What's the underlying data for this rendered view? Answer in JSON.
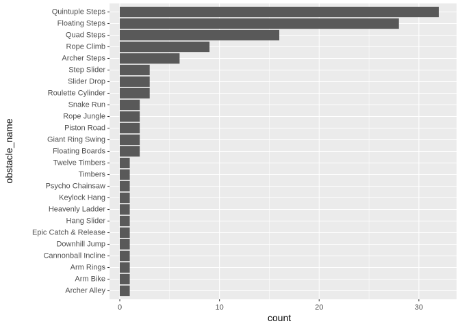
{
  "chart_data": {
    "type": "bar",
    "orientation": "horizontal",
    "xlabel": "count",
    "ylabel": "obstacle_name",
    "xlim": [
      0,
      33.6
    ],
    "x_ticks": [
      0,
      10,
      20,
      30
    ],
    "x_tick_labels": [
      "0",
      "10",
      "20",
      "30"
    ],
    "grid": true,
    "categories": [
      "Quintuple Steps",
      "Floating Steps",
      "Quad Steps",
      "Rope Climb",
      "Archer Steps",
      "Step Slider",
      "Slider Drop",
      "Roulette Cylinder",
      "Snake Run",
      "Rope Jungle",
      "Piston Road",
      "Giant Ring Swing",
      "Floating Boards",
      "Twelve Timbers",
      "Timbers",
      "Psycho Chainsaw",
      "Keylock Hang",
      "Heavenly Ladder",
      "Hang Slider",
      "Epic Catch & Release",
      "Downhill Jump",
      "Cannonball Incline",
      "Arm Rings",
      "Arm Bike",
      "Archer Alley"
    ],
    "values": [
      32,
      28,
      16,
      9,
      6,
      3,
      3,
      3,
      2,
      2,
      2,
      2,
      2,
      1,
      1,
      1,
      1,
      1,
      1,
      1,
      1,
      1,
      1,
      1,
      1
    ],
    "colors": {
      "panel": "#ebebeb",
      "grid": "#ffffff",
      "bar": "#595959",
      "tick_text": "#4d4d4d",
      "title_text": "#000000"
    }
  }
}
